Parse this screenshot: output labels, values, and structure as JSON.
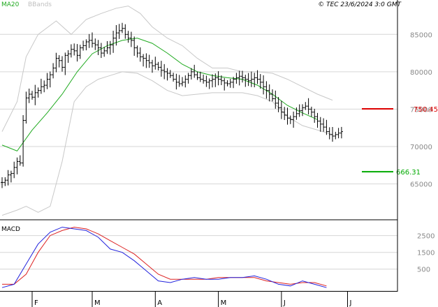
{
  "header": {
    "ma_label": "MA20",
    "bb_label": "BBands",
    "copyright": "© TEC 23/6/2024 3:0 GMT"
  },
  "macd_label": "MACD",
  "colors": {
    "grid": "#d6d6d6",
    "axis": "#000000",
    "price_bar": "#000000",
    "ma": "#1faa1f",
    "bbands": "#c8c8c8",
    "macd_line": "#2222dd",
    "signal_line": "#dd2222",
    "resistance": "#dd0000",
    "support": "#00aa00",
    "label": "#888888"
  },
  "chart_data": [
    {
      "type": "ohlc",
      "name": "price",
      "y_ticks": [
        650,
        700,
        750,
        800,
        850
      ],
      "y_tick_labels": [
        "65000",
        "70000",
        "75000",
        "80000",
        "85000"
      ],
      "ylim": [
        602,
        896
      ],
      "x_ticks": [
        "F",
        "M",
        "A",
        "M",
        "J",
        "J"
      ],
      "x_tick_positions": [
        10,
        30,
        51,
        72,
        93,
        115
      ],
      "xlim": [
        0,
        118
      ],
      "grid": true,
      "levels": [
        {
          "name": "resistance",
          "value": 750.45,
          "label": "750.45"
        },
        {
          "name": "support",
          "value": 666.31,
          "label": "666.31"
        }
      ],
      "series": [
        {
          "name": "price",
          "close": [
            652,
            655,
            662,
            664,
            672,
            680,
            678,
            735,
            765,
            770,
            766,
            772,
            775,
            780,
            782,
            790,
            796,
            805,
            818,
            815,
            806,
            822,
            824,
            830,
            828,
            822,
            832,
            835,
            840,
            842,
            838,
            836,
            832,
            825,
            828,
            832,
            836,
            845,
            852,
            855,
            858,
            850,
            845,
            842,
            832,
            825,
            820,
            818,
            815,
            812,
            808,
            810,
            806,
            802,
            800,
            798,
            795,
            790,
            786,
            784,
            786,
            790,
            795,
            800,
            796,
            792,
            790,
            788,
            786,
            788,
            790,
            792,
            790,
            788,
            785,
            784,
            786,
            790,
            792,
            794,
            792,
            790,
            788,
            790,
            792,
            790,
            786,
            780,
            775,
            770,
            764,
            758,
            752,
            746,
            742,
            738,
            736,
            740,
            744,
            748,
            752,
            754,
            750,
            746,
            740,
            734,
            730,
            726,
            720,
            716,
            714,
            716,
            718,
            720
          ]
        },
        {
          "name": "MA20",
          "values": [
            [
              0,
              702
            ],
            [
              5,
              694
            ],
            [
              10,
              722
            ],
            [
              15,
              745
            ],
            [
              20,
              770
            ],
            [
              25,
              800
            ],
            [
              30,
              824
            ],
            [
              35,
              835
            ],
            [
              40,
              842
            ],
            [
              45,
              845
            ],
            [
              50,
              838
            ],
            [
              55,
              825
            ],
            [
              60,
              810
            ],
            [
              65,
              800
            ],
            [
              70,
              795
            ],
            [
              75,
              792
            ],
            [
              80,
              790
            ],
            [
              85,
              782
            ],
            [
              90,
              770
            ],
            [
              95,
              755
            ],
            [
              100,
              745
            ],
            [
              105,
              736
            ]
          ]
        },
        {
          "name": "BBands upper",
          "values": [
            [
              0,
              720
            ],
            [
              5,
              760
            ],
            [
              8,
              820
            ],
            [
              12,
              850
            ],
            [
              18,
              868
            ],
            [
              23,
              850
            ],
            [
              28,
              870
            ],
            [
              33,
              878
            ],
            [
              38,
              885
            ],
            [
              42,
              888
            ],
            [
              46,
              878
            ],
            [
              50,
              860
            ],
            [
              55,
              845
            ],
            [
              60,
              835
            ],
            [
              65,
              818
            ],
            [
              70,
              805
            ],
            [
              75,
              805
            ],
            [
              80,
              800
            ],
            [
              85,
              800
            ],
            [
              90,
              798
            ],
            [
              95,
              790
            ],
            [
              100,
              780
            ],
            [
              105,
              770
            ],
            [
              110,
              762
            ]
          ]
        },
        {
          "name": "BBands lower",
          "values": [
            [
              0,
              608
            ],
            [
              5,
              615
            ],
            [
              8,
              620
            ],
            [
              12,
              612
            ],
            [
              16,
              620
            ],
            [
              20,
              680
            ],
            [
              24,
              760
            ],
            [
              28,
              780
            ],
            [
              32,
              790
            ],
            [
              36,
              795
            ],
            [
              40,
              800
            ],
            [
              45,
              798
            ],
            [
              50,
              788
            ],
            [
              55,
              775
            ],
            [
              60,
              768
            ],
            [
              65,
              770
            ],
            [
              70,
              772
            ],
            [
              75,
              772
            ],
            [
              80,
              772
            ],
            [
              85,
              768
            ],
            [
              90,
              760
            ],
            [
              95,
              740
            ],
            [
              100,
              728
            ],
            [
              105,
              722
            ],
            [
              110,
              716
            ]
          ]
        }
      ]
    },
    {
      "type": "line",
      "name": "MACD",
      "y_ticks": [
        5,
        15,
        25
      ],
      "y_tick_labels": [
        "500",
        "1500",
        "2500"
      ],
      "ylim": [
        -8,
        34
      ],
      "xlim": [
        0,
        118
      ],
      "grid": true,
      "series": [
        {
          "name": "MACD",
          "values": [
            [
              0,
              -6
            ],
            [
              4,
              -4
            ],
            [
              8,
              8
            ],
            [
              12,
              20
            ],
            [
              16,
              27
            ],
            [
              20,
              30
            ],
            [
              24,
              29
            ],
            [
              28,
              28
            ],
            [
              32,
              24
            ],
            [
              36,
              17
            ],
            [
              40,
              15
            ],
            [
              44,
              10
            ],
            [
              48,
              4
            ],
            [
              52,
              -2
            ],
            [
              56,
              -3
            ],
            [
              60,
              -1
            ],
            [
              64,
              0
            ],
            [
              68,
              -1
            ],
            [
              72,
              -1
            ],
            [
              76,
              0
            ],
            [
              80,
              0
            ],
            [
              84,
              1
            ],
            [
              88,
              -1
            ],
            [
              92,
              -4
            ],
            [
              96,
              -5
            ],
            [
              100,
              -2
            ],
            [
              104,
              -4
            ],
            [
              108,
              -6
            ]
          ]
        },
        {
          "name": "Signal",
          "values": [
            [
              0,
              -4
            ],
            [
              4,
              -4
            ],
            [
              8,
              2
            ],
            [
              12,
              15
            ],
            [
              16,
              25
            ],
            [
              20,
              28
            ],
            [
              24,
              30
            ],
            [
              28,
              29
            ],
            [
              32,
              26
            ],
            [
              36,
              22
            ],
            [
              40,
              18
            ],
            [
              44,
              14
            ],
            [
              48,
              8
            ],
            [
              52,
              2
            ],
            [
              56,
              -1
            ],
            [
              60,
              -1
            ],
            [
              64,
              -1
            ],
            [
              68,
              -1
            ],
            [
              72,
              0
            ],
            [
              76,
              0
            ],
            [
              80,
              0
            ],
            [
              84,
              0
            ],
            [
              88,
              -2
            ],
            [
              92,
              -3
            ],
            [
              96,
              -4
            ],
            [
              100,
              -3
            ],
            [
              104,
              -3
            ],
            [
              108,
              -5
            ]
          ]
        }
      ]
    }
  ]
}
